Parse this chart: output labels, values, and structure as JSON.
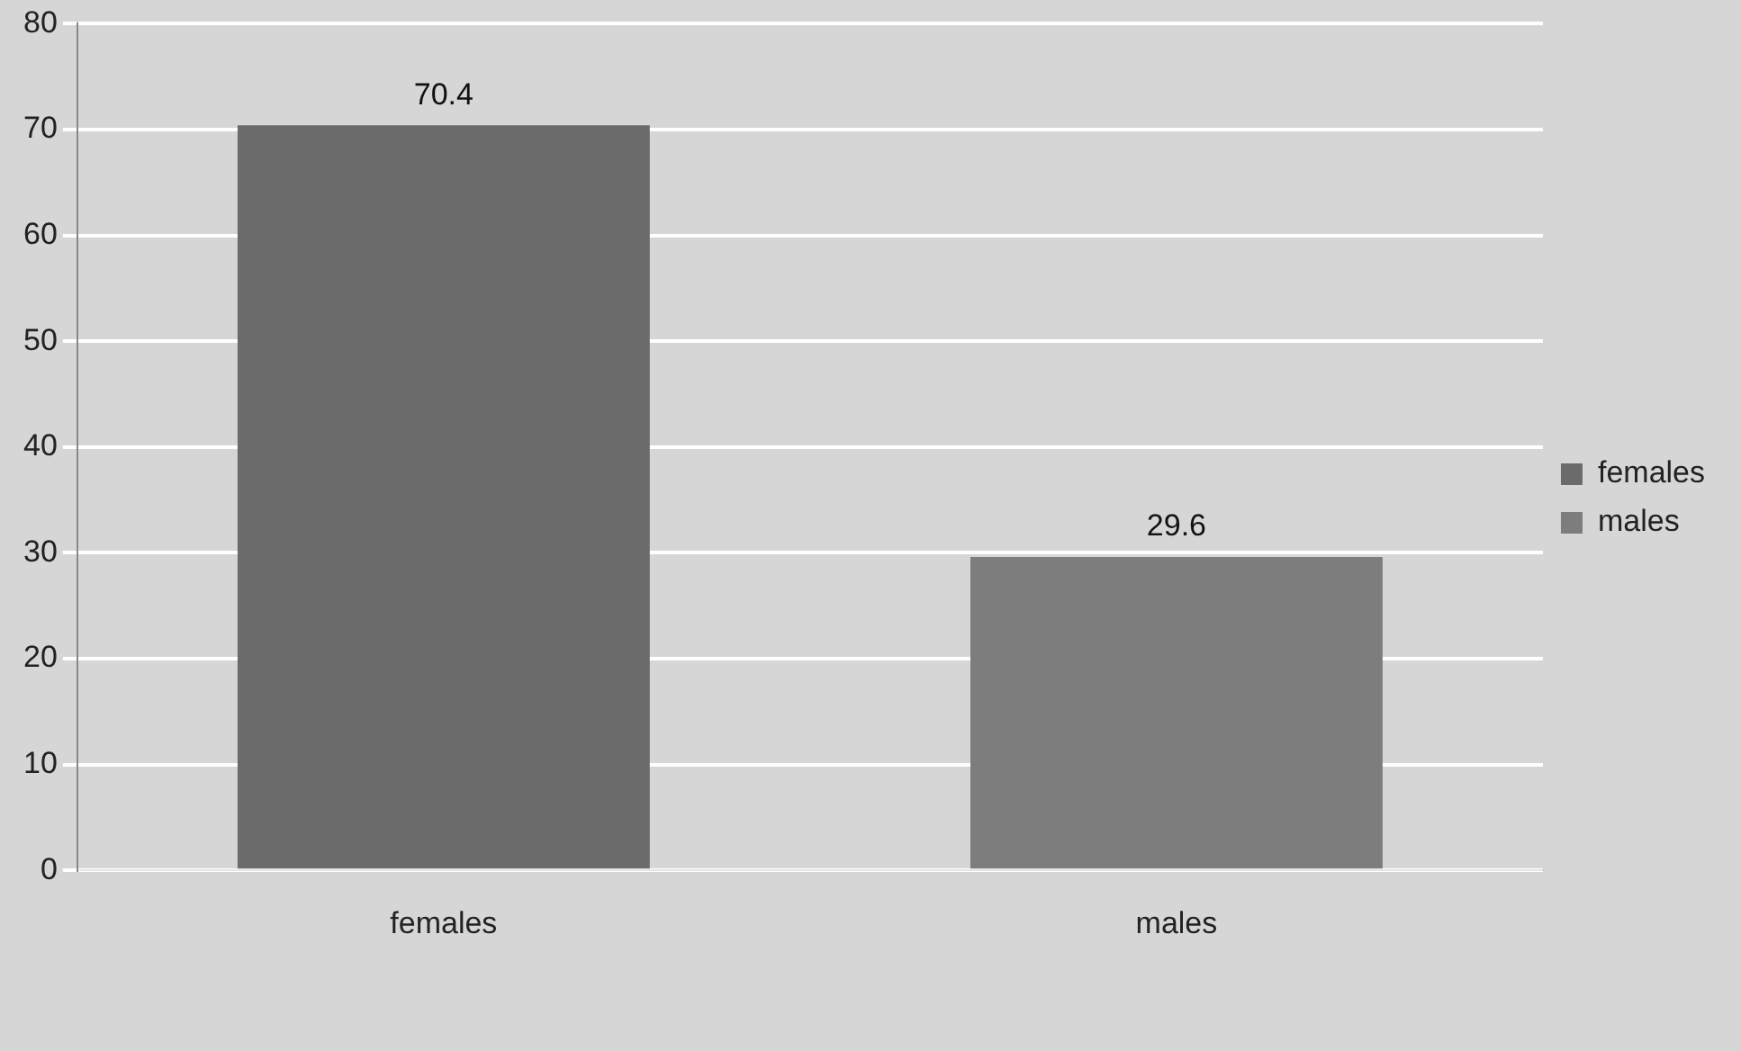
{
  "chart_data": {
    "type": "bar",
    "categories": [
      "females",
      "males"
    ],
    "series": [
      {
        "name": "females",
        "color": "#6b6b6b",
        "values": [
          70.4,
          null
        ]
      },
      {
        "name": "males",
        "color": "#7d7d7d",
        "values": [
          null,
          29.6
        ]
      }
    ],
    "ylim": [
      0,
      80
    ],
    "yticks": [
      0,
      10,
      20,
      30,
      40,
      50,
      60,
      70,
      80
    ],
    "grid": "y",
    "legend": "right",
    "data_labels": true
  }
}
